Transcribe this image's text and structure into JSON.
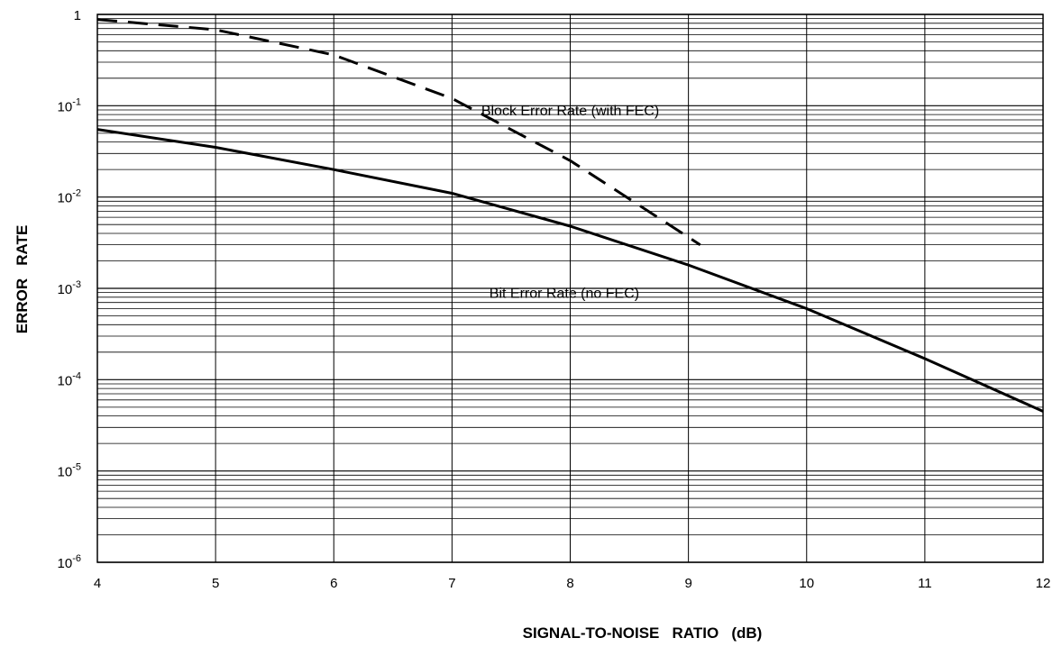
{
  "chart_data": {
    "type": "line",
    "xlabel": "SIGNAL-TO-NOISE   RATIO   (dB)",
    "ylabel": "ERROR   RATE",
    "xlim": [
      4,
      12
    ],
    "ylim": [
      1e-06,
      1
    ],
    "yscale": "log",
    "grid": true,
    "x_ticks": [
      "4",
      "5",
      "6",
      "7",
      "8",
      "9",
      "10",
      "11",
      "12"
    ],
    "y_ticks": [
      {
        "value": 1,
        "base": "1",
        "exp": ""
      },
      {
        "value": 0.1,
        "base": "10",
        "exp": "-1"
      },
      {
        "value": 0.01,
        "base": "10",
        "exp": "-2"
      },
      {
        "value": 0.001,
        "base": "10",
        "exp": "-3"
      },
      {
        "value": 0.0001,
        "base": "10",
        "exp": "-4"
      },
      {
        "value": 1e-05,
        "base": "10",
        "exp": "-5"
      },
      {
        "value": 1e-06,
        "base": "10",
        "exp": "-6"
      }
    ],
    "series": [
      {
        "name": "Block Error Rate (with FEC)",
        "style": "dashed",
        "color": "#000000",
        "x": [
          4.0,
          5.0,
          6.0,
          7.0,
          8.0,
          9.1
        ],
        "y": [
          0.88,
          0.68,
          0.36,
          0.12,
          0.025,
          0.003
        ]
      },
      {
        "name": "Bit Error Rate (no FEC)",
        "style": "solid",
        "color": "#000000",
        "x": [
          4.0,
          5.0,
          6.0,
          7.0,
          8.0,
          9.0,
          10.0,
          11.0,
          12.0
        ],
        "y": [
          0.055,
          0.035,
          0.02,
          0.011,
          0.0048,
          0.0018,
          0.0006,
          0.00017,
          4.5e-05
        ]
      }
    ],
    "annotations": [
      {
        "text": "Block Error Rate (with FEC)",
        "x": 8.0,
        "y": 0.09
      },
      {
        "text": "Bit Error Rate (no FEC)",
        "x": 7.95,
        "y": 0.0009
      }
    ]
  }
}
